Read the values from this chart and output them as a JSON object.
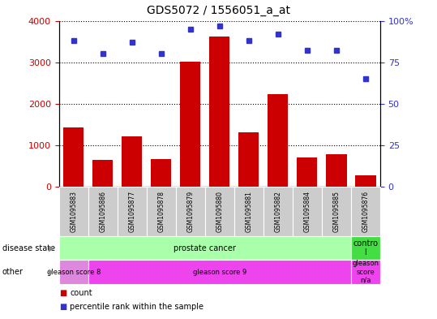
{
  "title": "GDS5072 / 1556051_a_at",
  "samples": [
    "GSM1095883",
    "GSM1095886",
    "GSM1095877",
    "GSM1095878",
    "GSM1095879",
    "GSM1095880",
    "GSM1095881",
    "GSM1095882",
    "GSM1095884",
    "GSM1095885",
    "GSM1095876"
  ],
  "counts": [
    1430,
    650,
    1210,
    660,
    3020,
    3620,
    1310,
    2230,
    710,
    780,
    270
  ],
  "percentiles": [
    88,
    80,
    87,
    80,
    95,
    97,
    88,
    92,
    82,
    82,
    65
  ],
  "ylim_left": [
    0,
    4000
  ],
  "ylim_right": [
    0,
    100
  ],
  "yticks_left": [
    0,
    1000,
    2000,
    3000,
    4000
  ],
  "yticks_right": [
    0,
    25,
    50,
    75,
    100
  ],
  "bar_color": "#cc0000",
  "dot_color": "#3333cc",
  "disease_state_groups": [
    {
      "label": "prostate cancer",
      "start": 0,
      "end": 10,
      "color": "#aaffaa"
    },
    {
      "label": "contro\nl",
      "start": 10,
      "end": 11,
      "color": "#44dd44"
    }
  ],
  "other_groups": [
    {
      "label": "gleason score 8",
      "start": 0,
      "end": 1,
      "color": "#dd88dd"
    },
    {
      "label": "gleason score 9",
      "start": 1,
      "end": 10,
      "color": "#ee44ee"
    },
    {
      "label": "gleason\nscore\nn/a",
      "start": 10,
      "end": 11,
      "color": "#ee44ee"
    }
  ],
  "legend_count_color": "#cc0000",
  "legend_dot_color": "#3333cc",
  "sample_bg_color": "#cccccc",
  "left_label_color": "#000000"
}
